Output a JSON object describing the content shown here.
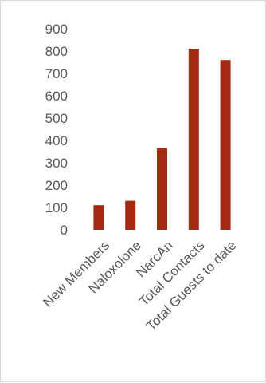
{
  "chart_data": {
    "type": "bar",
    "categories": [
      "New Members",
      "Naloxolone",
      "NarcAn",
      "Total Contacts",
      "Total Guests to date"
    ],
    "values": [
      110,
      130,
      365,
      810,
      760
    ],
    "yticks": [
      0,
      100,
      200,
      300,
      400,
      500,
      600,
      700,
      800,
      900
    ],
    "ylim": [
      0,
      900
    ],
    "grid": false,
    "legend": false,
    "title": "",
    "xlabel": "",
    "ylabel": "",
    "bar_color": "#A52A14",
    "tick_color": "#595959",
    "border_color": "#d9d9d9"
  }
}
